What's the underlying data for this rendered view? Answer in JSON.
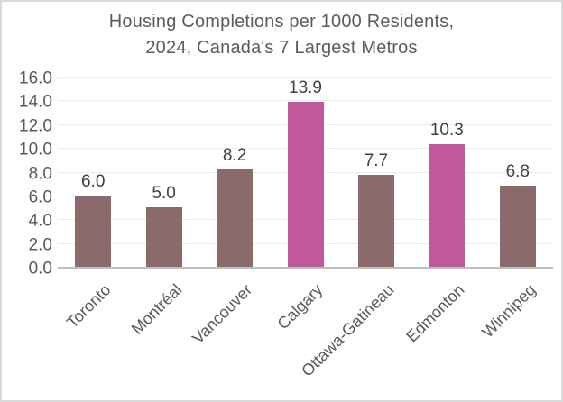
{
  "chart_data": {
    "type": "bar",
    "title": "Housing Completions per 1000 Residents, 2024, Canada's 7 Largest Metros",
    "title_lines": [
      "Housing Completions per 1000 Residents,",
      "2024, Canada's 7 Largest Metros"
    ],
    "categories": [
      "Toronto",
      "Montréal",
      "Vancouver",
      "Calgary",
      "Ottawa-Gatineau",
      "Edmonton",
      "Winnipeg"
    ],
    "values": [
      6.0,
      5.0,
      8.2,
      13.9,
      7.7,
      10.3,
      6.8
    ],
    "data_labels": [
      "6.0",
      "5.0",
      "8.2",
      "13.9",
      "7.7",
      "10.3",
      "6.8"
    ],
    "highlighted_categories": [
      "Calgary",
      "Edmonton"
    ],
    "xlabel": "",
    "ylabel": "",
    "ylim": [
      0,
      16
    ],
    "ytick_step": 2,
    "ytick_labels": [
      "0.0",
      "2.0",
      "4.0",
      "6.0",
      "8.0",
      "10.0",
      "12.0",
      "14.0",
      "16.0"
    ],
    "grid": "horizontal",
    "legend": "none",
    "colors": {
      "bar_default": "#8a6a6a",
      "bar_highlight": "#c0589e",
      "gridline": "#ececec",
      "axis_line": "#bfbfbf",
      "title_text": "#5c5c5c",
      "tick_text": "#595959",
      "data_label_text": "#3f3f3f",
      "frame_border": "#d9d9d9"
    }
  }
}
